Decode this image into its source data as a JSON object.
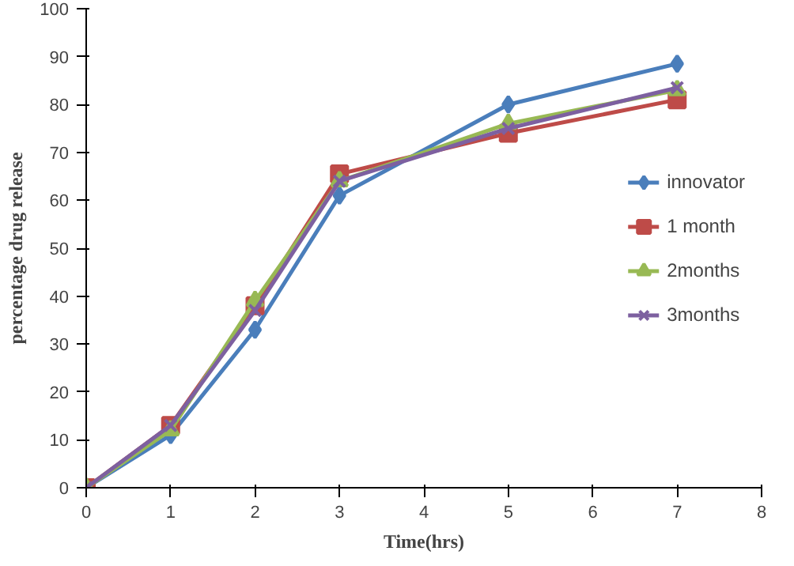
{
  "chart_data": {
    "type": "line",
    "xlabel": "Time(hrs)",
    "ylabel": "percentage drug release",
    "x": [
      0,
      1,
      2,
      3,
      5,
      7
    ],
    "series": [
      {
        "name": "innovator",
        "color": "#4a7ebb",
        "marker": "diamond",
        "values": [
          0,
          11,
          33,
          61,
          80,
          88.5
        ]
      },
      {
        "name": "1 month",
        "color": "#be4b48",
        "marker": "square",
        "values": [
          0,
          13,
          38,
          65.5,
          74,
          81
        ]
      },
      {
        "name": "2months",
        "color": "#98b954",
        "marker": "triangle",
        "values": [
          0,
          12,
          39,
          64,
          76,
          83
        ]
      },
      {
        "name": "3months",
        "color": "#7d60a0",
        "marker": "cross",
        "values": [
          0,
          13,
          37,
          64,
          75,
          83.5
        ]
      }
    ],
    "xlim": [
      0,
      8
    ],
    "xticks": [
      0,
      1,
      2,
      3,
      4,
      5,
      6,
      7,
      8
    ],
    "ylim": [
      0,
      100
    ],
    "yticks": [
      0,
      10,
      20,
      30,
      40,
      50,
      60,
      70,
      80,
      90,
      100
    ],
    "grid": false,
    "legend": "right",
    "line_style": "solid"
  }
}
